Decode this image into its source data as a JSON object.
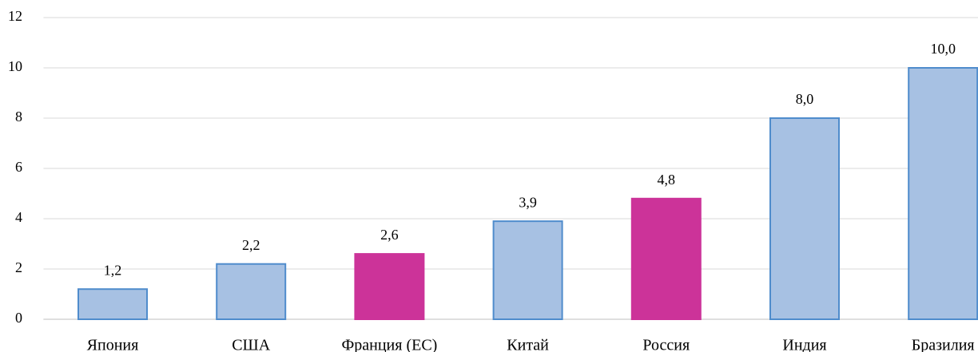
{
  "chart_data": {
    "type": "bar",
    "categories": [
      "Япония",
      "США",
      "Франция (ЕС)",
      "Китай",
      "Россия",
      "Индия",
      "Бразилия"
    ],
    "values": [
      1.2,
      2.2,
      2.6,
      3.9,
      4.8,
      8.0,
      10.0
    ],
    "value_labels": [
      "1,2",
      "2,2",
      "2,6",
      "3,9",
      "4,8",
      "8,0",
      "10,0"
    ],
    "colors": [
      "#a7c1e3",
      "#a7c1e3",
      "#cc3399",
      "#a7c1e3",
      "#cc3399",
      "#a7c1e3",
      "#a7c1e3"
    ],
    "edgecolors": [
      "#4f8ccc",
      "#4f8ccc",
      "#cc3399",
      "#4f8ccc",
      "#cc3399",
      "#4f8ccc",
      "#4f8ccc"
    ],
    "ylim": [
      0,
      12
    ],
    "yticks": [
      0,
      2,
      4,
      6,
      8,
      10,
      12
    ],
    "grid": true
  }
}
